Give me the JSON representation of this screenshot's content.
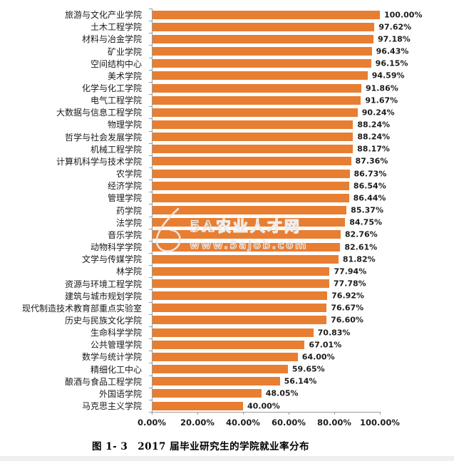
{
  "page": {
    "background": "#ffffff",
    "bottom_strip_color": "#efefef"
  },
  "caption": {
    "text": "图 1- 3　2017 届毕业研究生的学院就业率分布"
  },
  "watermark": {
    "logo": "droplet-logo",
    "line1": "5A农业人才网",
    "line2": "www.5ajob.com"
  },
  "chart_data": {
    "type": "bar",
    "orientation": "horizontal",
    "title": "",
    "xlabel": "",
    "ylabel": "",
    "grid": false,
    "legend": false,
    "xlim": [
      0,
      100
    ],
    "x_ticks": [
      "0.00%",
      "20.00%",
      "40.00%",
      "60.00%",
      "80.00%",
      "100.00%"
    ],
    "bar_color": "#E87E31",
    "axis_color": "#9b9b9b",
    "categories": [
      "旅游与文化产业学院",
      "土木工程学院",
      "材料与冶金学院",
      "矿业学院",
      "空间结构中心",
      "美术学院",
      "化学与化工学院",
      "电气工程学院",
      "大数据与信息工程学院",
      "物理学院",
      "哲学与社会发展学院",
      "机械工程学院",
      "计算机科学与技术学院",
      "农学院",
      "经济学院",
      "管理学院",
      "药学院",
      "法学院",
      "音乐学院",
      "动物科学学院",
      "文学与传媒学院",
      "林学院",
      "资源与环境工程学院",
      "建筑与城市规划学院",
      "现代制造技术教育部重点实验室",
      "历史与民族文化学院",
      "生命科学学院",
      "公共管理学院",
      "数学与统计学院",
      "精细化工中心",
      "酿酒与食品工程学院",
      "外国语学院",
      "马克思主义学院"
    ],
    "values": [
      100.0,
      97.62,
      97.18,
      96.43,
      96.15,
      94.59,
      91.86,
      91.67,
      90.24,
      88.24,
      88.24,
      88.17,
      87.36,
      86.73,
      86.54,
      86.44,
      85.37,
      84.75,
      82.76,
      82.61,
      81.82,
      77.94,
      77.78,
      76.92,
      76.67,
      76.6,
      70.83,
      67.01,
      64.0,
      59.65,
      56.14,
      48.05,
      40.0
    ],
    "value_labels": [
      "100.00%",
      "97.62%",
      "97.18%",
      "96.43%",
      "96.15%",
      "94.59%",
      "91.86%",
      "91.67%",
      "90.24%",
      "88.24%",
      "88.24%",
      "88.17%",
      "87.36%",
      "86.73%",
      "86.54%",
      "86.44%",
      "85.37%",
      "84.75%",
      "82.76%",
      "82.61%",
      "81.82%",
      "77.94%",
      "77.78%",
      "76.92%",
      "76.67%",
      "76.60%",
      "70.83%",
      "67.01%",
      "64.00%",
      "59.65%",
      "56.14%",
      "48.05%",
      "40.00%"
    ]
  }
}
